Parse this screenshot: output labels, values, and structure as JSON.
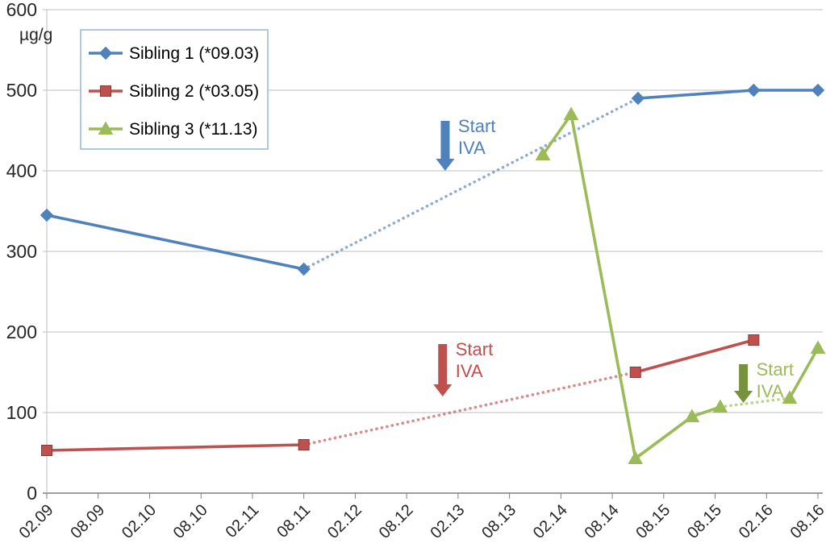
{
  "chart_data": {
    "type": "line",
    "title": "",
    "ylabel": "µg/g",
    "ylim": [
      0,
      600
    ],
    "ytick_step": 100,
    "grid": true,
    "legend_position": "top-left",
    "x_tick_labels": [
      "02.09",
      "08.09",
      "02.10",
      "08.10",
      "02.11",
      "08.11",
      "02.12",
      "08.12",
      "02.13",
      "08.13",
      "02.14",
      "08.14",
      "08.15",
      "08.15",
      "02.16",
      "08.16"
    ],
    "series": [
      {
        "name": "Sibling 1 (*09.03)",
        "color": "#4F81BD",
        "marker": "diamond",
        "points": [
          {
            "x": 0,
            "y": 345
          },
          {
            "x": 5,
            "y": 278
          },
          {
            "x": 11.5,
            "y": 490
          },
          {
            "x": 13.75,
            "y": 500
          },
          {
            "x": 15,
            "y": 500
          }
        ],
        "dashed_segments": [
          1
        ]
      },
      {
        "name": "Sibling 2 (*03.05)",
        "color": "#C0504D",
        "marker": "square",
        "points": [
          {
            "x": 0,
            "y": 53
          },
          {
            "x": 5,
            "y": 60
          },
          {
            "x": 11.45,
            "y": 150
          },
          {
            "x": 13.75,
            "y": 190
          }
        ],
        "dashed_segments": [
          1
        ]
      },
      {
        "name": "Sibling 3 (*11.13)",
        "color": "#9BBB59",
        "marker": "triangle",
        "points": [
          {
            "x": 9.65,
            "y": 420
          },
          {
            "x": 10.2,
            "y": 470
          },
          {
            "x": 11.45,
            "y": 43
          },
          {
            "x": 12.55,
            "y": 95
          },
          {
            "x": 13.1,
            "y": 107
          },
          {
            "x": 14.45,
            "y": 118
          },
          {
            "x": 15,
            "y": 180
          }
        ],
        "dashed_segments": [
          4
        ]
      }
    ],
    "annotations": [
      {
        "lines": [
          "Start",
          "IVA"
        ],
        "text_color": "#4F81BD",
        "arrow_color": "#4F81BD",
        "x": 7.75,
        "arrow_from": 462,
        "arrow_to": 400
      },
      {
        "lines": [
          "Start",
          "IVA"
        ],
        "text_color": "#C0504D",
        "arrow_color": "#C0504D",
        "x": 7.7,
        "arrow_from": 185,
        "arrow_to": 120
      },
      {
        "lines": [
          "Start",
          "IVA"
        ],
        "text_color": "#9BBB59",
        "arrow_color": "#76923C",
        "x": 13.55,
        "arrow_from": 160,
        "arrow_to": 112
      }
    ]
  }
}
